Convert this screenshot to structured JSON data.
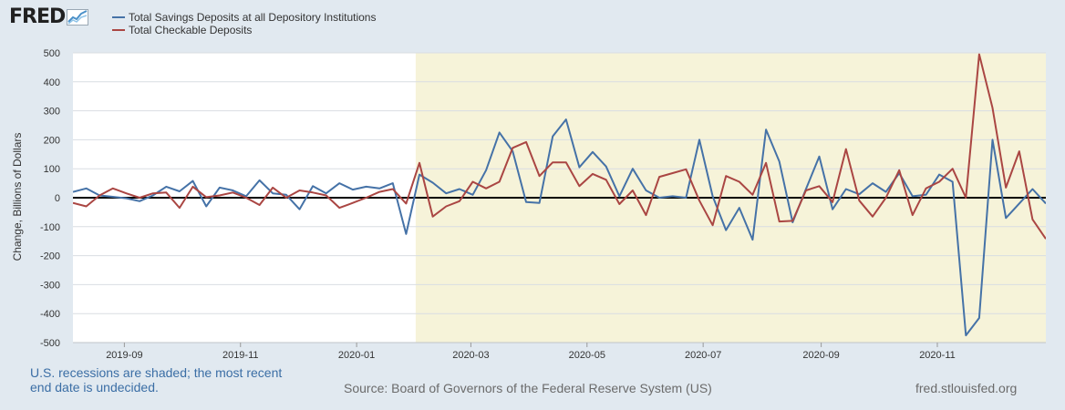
{
  "logo": {
    "text": "FRED",
    "icon": "chart-line-icon"
  },
  "legend": [
    {
      "label": "Total Savings Deposits at all Depository Institutions",
      "color": "#4572a7"
    },
    {
      "label": "Total Checkable Deposits",
      "color": "#aa4643"
    }
  ],
  "chart_data": {
    "type": "line",
    "ylabel": "Change, Billions of Dollars",
    "ylim": [
      -500,
      500
    ],
    "yticks": [
      500,
      400,
      300,
      200,
      100,
      0,
      -100,
      -200,
      -300,
      -400,
      -500
    ],
    "x_range": [
      "2019-08-05",
      "2020-12-28"
    ],
    "x_ticks": [
      {
        "label": "2019-09",
        "date": "2019-09-01"
      },
      {
        "label": "2019-11",
        "date": "2019-11-01"
      },
      {
        "label": "2020-01",
        "date": "2020-01-01"
      },
      {
        "label": "2020-03",
        "date": "2020-03-01"
      },
      {
        "label": "2020-05",
        "date": "2020-05-01"
      },
      {
        "label": "2020-07",
        "date": "2020-07-01"
      },
      {
        "label": "2020-09",
        "date": "2020-09-01"
      },
      {
        "label": "2020-11",
        "date": "2020-11-01"
      }
    ],
    "shaded_region": {
      "start": "2020-02-01",
      "end": "2020-12-28",
      "color": "#f6f3d9"
    },
    "zero_line": true,
    "series": [
      {
        "name": "Total Savings Deposits at all Depository Institutions",
        "color": "#4572a7",
        "dates": [
          "2019-08-05",
          "2019-08-12",
          "2019-08-19",
          "2019-08-26",
          "2019-09-02",
          "2019-09-09",
          "2019-09-16",
          "2019-09-23",
          "2019-09-30",
          "2019-10-07",
          "2019-10-14",
          "2019-10-21",
          "2019-10-28",
          "2019-11-04",
          "2019-11-11",
          "2019-11-18",
          "2019-11-25",
          "2019-12-02",
          "2019-12-09",
          "2019-12-16",
          "2019-12-23",
          "2019-12-30",
          "2020-01-06",
          "2020-01-13",
          "2020-01-20",
          "2020-01-27",
          "2020-02-03",
          "2020-02-10",
          "2020-02-17",
          "2020-02-24",
          "2020-03-02",
          "2020-03-09",
          "2020-03-16",
          "2020-03-23",
          "2020-03-30",
          "2020-04-06",
          "2020-04-13",
          "2020-04-20",
          "2020-04-27",
          "2020-05-04",
          "2020-05-11",
          "2020-05-18",
          "2020-05-25",
          "2020-06-01",
          "2020-06-08",
          "2020-06-15",
          "2020-06-22",
          "2020-06-29",
          "2020-07-06",
          "2020-07-13",
          "2020-07-20",
          "2020-07-27",
          "2020-08-03",
          "2020-08-10",
          "2020-08-17",
          "2020-08-24",
          "2020-08-31",
          "2020-09-07",
          "2020-09-14",
          "2020-09-21",
          "2020-09-28",
          "2020-10-05",
          "2020-10-12",
          "2020-10-19",
          "2020-10-26",
          "2020-11-02",
          "2020-11-09",
          "2020-11-16",
          "2020-11-23",
          "2020-11-30",
          "2020-12-07",
          "2020-12-14",
          "2020-12-21",
          "2020-12-28"
        ],
        "values": [
          20,
          32,
          8,
          3,
          -2,
          -12,
          8,
          38,
          22,
          58,
          -30,
          35,
          25,
          5,
          60,
          15,
          10,
          -40,
          40,
          15,
          50,
          28,
          38,
          32,
          50,
          -125,
          80,
          52,
          15,
          30,
          10,
          95,
          225,
          160,
          -15,
          -18,
          212,
          270,
          105,
          158,
          108,
          5,
          100,
          25,
          0,
          5,
          0,
          200,
          5,
          -112,
          -35,
          -145,
          235,
          125,
          -85,
          30,
          142,
          -40,
          30,
          12,
          50,
          20,
          85,
          5,
          10,
          80,
          55,
          -475,
          -415,
          200,
          -70,
          -20,
          30,
          -20
        ],
        "values_note": "last value not used"
      },
      {
        "name": "Total Checkable Deposits",
        "color": "#aa4643",
        "dates": [
          "2019-08-05",
          "2019-08-12",
          "2019-08-19",
          "2019-08-26",
          "2019-09-02",
          "2019-09-09",
          "2019-09-16",
          "2019-09-23",
          "2019-09-30",
          "2019-10-07",
          "2019-10-14",
          "2019-10-21",
          "2019-10-28",
          "2019-11-04",
          "2019-11-11",
          "2019-11-18",
          "2019-11-25",
          "2019-12-02",
          "2019-12-09",
          "2019-12-16",
          "2019-12-23",
          "2019-12-30",
          "2020-01-06",
          "2020-01-13",
          "2020-01-20",
          "2020-01-27",
          "2020-02-03",
          "2020-02-10",
          "2020-02-17",
          "2020-02-24",
          "2020-03-02",
          "2020-03-09",
          "2020-03-16",
          "2020-03-23",
          "2020-03-30",
          "2020-04-06",
          "2020-04-13",
          "2020-04-20",
          "2020-04-27",
          "2020-05-04",
          "2020-05-11",
          "2020-05-18",
          "2020-05-25",
          "2020-06-01",
          "2020-06-08",
          "2020-06-15",
          "2020-06-22",
          "2020-06-29",
          "2020-07-06",
          "2020-07-13",
          "2020-07-20",
          "2020-07-27",
          "2020-08-03",
          "2020-08-10",
          "2020-08-17",
          "2020-08-24",
          "2020-08-31",
          "2020-09-07",
          "2020-09-14",
          "2020-09-21",
          "2020-09-28",
          "2020-10-05",
          "2020-10-12",
          "2020-10-19",
          "2020-10-26",
          "2020-11-02",
          "2020-11-09",
          "2020-11-16",
          "2020-11-23",
          "2020-11-30",
          "2020-12-07",
          "2020-12-14",
          "2020-12-21",
          "2020-12-28"
        ],
        "values": [
          -18,
          -30,
          8,
          32,
          15,
          0,
          15,
          18,
          -35,
          38,
          2,
          8,
          18,
          0,
          -25,
          35,
          0,
          25,
          18,
          8,
          -35,
          -18,
          0,
          20,
          30,
          -20,
          120,
          -65,
          -30,
          -12,
          55,
          32,
          55,
          172,
          192,
          75,
          122,
          122,
          40,
          82,
          62,
          -22,
          25,
          -60,
          72,
          85,
          98,
          -10,
          -95,
          75,
          55,
          10,
          120,
          -82,
          -80,
          25,
          40,
          -15,
          168,
          -10,
          -65,
          0,
          95,
          -60,
          32,
          55,
          100,
          0,
          495,
          310,
          35,
          160,
          -75,
          -142
        ],
        "values_note": ""
      }
    ]
  },
  "notes": {
    "recession": "U.S. recessions are shaded; the most recent end date is undecided.",
    "source": "Source: Board of Governors of the Federal Reserve System (US)",
    "site": "fred.stlouisfed.org"
  }
}
